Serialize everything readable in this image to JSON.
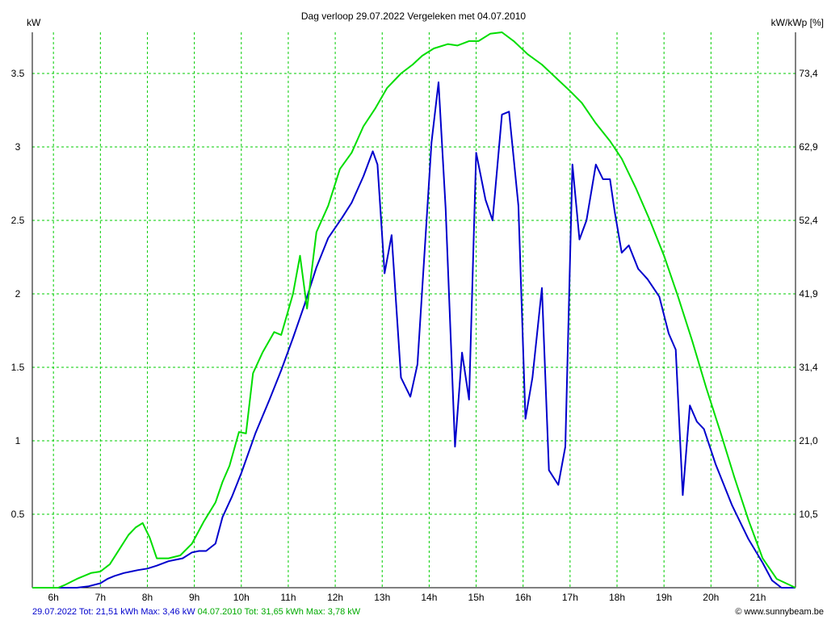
{
  "chart_data": {
    "type": "line",
    "title": "Dag  verloop 29.07.2022   Vergeleken met 04.07.2010",
    "left_axis_label": "kW",
    "right_axis_label": "kW/kWp [%]",
    "y_ticks": [
      {
        "value": 0.5,
        "label": "0.5"
      },
      {
        "value": 1,
        "label": "1"
      },
      {
        "value": 1.5,
        "label": "1.5"
      },
      {
        "value": 2,
        "label": "2"
      },
      {
        "value": 2.5,
        "label": "2.5"
      },
      {
        "value": 3,
        "label": "3"
      },
      {
        "value": 3.5,
        "label": "3.5"
      }
    ],
    "right_ticks": [
      {
        "value": 0.5,
        "label": "10,5"
      },
      {
        "value": 1,
        "label": "21,0"
      },
      {
        "value": 1.5,
        "label": "31,4"
      },
      {
        "value": 2,
        "label": "41,9"
      },
      {
        "value": 2.5,
        "label": "52,4"
      },
      {
        "value": 3,
        "label": "62,9"
      },
      {
        "value": 3.5,
        "label": "73,4"
      }
    ],
    "x_ticks": [
      {
        "value": 6,
        "label": "6h"
      },
      {
        "value": 7,
        "label": "7h"
      },
      {
        "value": 8,
        "label": "8h"
      },
      {
        "value": 9,
        "label": "9h"
      },
      {
        "value": 10,
        "label": "10h"
      },
      {
        "value": 11,
        "label": "11h"
      },
      {
        "value": 12,
        "label": "12h"
      },
      {
        "value": 13,
        "label": "13h"
      },
      {
        "value": 14,
        "label": "14h"
      },
      {
        "value": 15,
        "label": "15h"
      },
      {
        "value": 16,
        "label": "16h"
      },
      {
        "value": 17,
        "label": "17h"
      },
      {
        "value": 18,
        "label": "18h"
      },
      {
        "value": 19,
        "label": "19h"
      },
      {
        "value": 20,
        "label": "20h"
      },
      {
        "value": 21,
        "label": "21h"
      }
    ],
    "xlim": [
      5.55,
      21.8
    ],
    "ylim": [
      0,
      3.78
    ],
    "grid": true,
    "series": [
      {
        "color": "#0000cc",
        "x": [
          5.55,
          6.5,
          6.75,
          7.0,
          7.15,
          7.3,
          7.5,
          7.65,
          7.8,
          8.0,
          8.2,
          8.45,
          8.6,
          8.75,
          8.95,
          9.1,
          9.25,
          9.45,
          9.6,
          9.8,
          10.0,
          10.3,
          10.6,
          10.85,
          11.1,
          11.35,
          11.6,
          11.85,
          12.15,
          12.35,
          12.6,
          12.8,
          12.9,
          13.05,
          13.2,
          13.4,
          13.6,
          13.75,
          14.05,
          14.2,
          14.35,
          14.55,
          14.7,
          14.85,
          15.0,
          15.2,
          15.35,
          15.55,
          15.7,
          15.9,
          16.05,
          16.2,
          16.4,
          16.55,
          16.75,
          16.9,
          17.05,
          17.2,
          17.35,
          17.55,
          17.7,
          17.85,
          17.95,
          18.1,
          18.25,
          18.45,
          18.65,
          18.9,
          19.1,
          19.25,
          19.4,
          19.55,
          19.7,
          19.85,
          20.1,
          20.45,
          20.8,
          21.1,
          21.3,
          21.5,
          21.8
        ],
        "y": [
          0,
          0,
          0.01,
          0.03,
          0.06,
          0.08,
          0.1,
          0.11,
          0.12,
          0.13,
          0.15,
          0.18,
          0.19,
          0.2,
          0.24,
          0.25,
          0.25,
          0.3,
          0.48,
          0.62,
          0.78,
          1.05,
          1.28,
          1.48,
          1.7,
          1.93,
          2.18,
          2.38,
          2.52,
          2.62,
          2.8,
          2.97,
          2.88,
          2.14,
          2.4,
          1.43,
          1.3,
          1.52,
          3.03,
          3.44,
          2.58,
          0.96,
          1.6,
          1.28,
          2.96,
          2.64,
          2.5,
          3.22,
          3.24,
          2.6,
          1.15,
          1.43,
          2.04,
          0.8,
          0.7,
          0.96,
          2.88,
          2.37,
          2.5,
          2.88,
          2.78,
          2.78,
          2.56,
          2.28,
          2.33,
          2.17,
          2.1,
          1.98,
          1.73,
          1.62,
          0.63,
          1.24,
          1.13,
          1.08,
          0.84,
          0.56,
          0.33,
          0.17,
          0.05,
          0,
          0
        ]
      },
      {
        "color": "#00dd00",
        "x": [
          5.55,
          6.1,
          6.25,
          6.5,
          6.8,
          7.0,
          7.2,
          7.4,
          7.6,
          7.75,
          7.9,
          8.05,
          8.2,
          8.45,
          8.7,
          8.95,
          9.2,
          9.45,
          9.6,
          9.75,
          9.95,
          10.1,
          10.25,
          10.45,
          10.7,
          10.85,
          11.1,
          11.25,
          11.4,
          11.6,
          11.85,
          12.1,
          12.35,
          12.6,
          12.85,
          13.1,
          13.4,
          13.65,
          13.85,
          14.1,
          14.4,
          14.6,
          14.85,
          15.05,
          15.3,
          15.55,
          15.8,
          16.1,
          16.4,
          16.7,
          17.0,
          17.25,
          17.55,
          17.85,
          18.1,
          18.4,
          18.7,
          19.0,
          19.3,
          19.6,
          19.9,
          20.2,
          20.5,
          20.8,
          21.1,
          21.4,
          21.8
        ],
        "y": [
          0,
          0,
          0.02,
          0.06,
          0.1,
          0.11,
          0.16,
          0.26,
          0.36,
          0.41,
          0.44,
          0.34,
          0.2,
          0.2,
          0.22,
          0.3,
          0.45,
          0.58,
          0.72,
          0.83,
          1.06,
          1.05,
          1.46,
          1.6,
          1.74,
          1.72,
          2.0,
          2.26,
          1.9,
          2.42,
          2.6,
          2.85,
          2.96,
          3.14,
          3.26,
          3.4,
          3.5,
          3.56,
          3.62,
          3.67,
          3.7,
          3.69,
          3.72,
          3.72,
          3.77,
          3.78,
          3.72,
          3.63,
          3.56,
          3.47,
          3.38,
          3.3,
          3.16,
          3.04,
          2.92,
          2.72,
          2.5,
          2.26,
          1.98,
          1.68,
          1.36,
          1.06,
          0.75,
          0.46,
          0.2,
          0.06,
          0
        ]
      }
    ]
  },
  "footer": {
    "legend_1": "29.07.2022 Tot: 21,51 kWh Max: 3,46 kW",
    "legend_1_color": "#0000cc",
    "legend_2": "04.07.2010 Tot: 31,65 kWh Max: 3,78 kW",
    "legend_2_color": "#00aa00",
    "credit": "© www.sunnybeam.be"
  }
}
